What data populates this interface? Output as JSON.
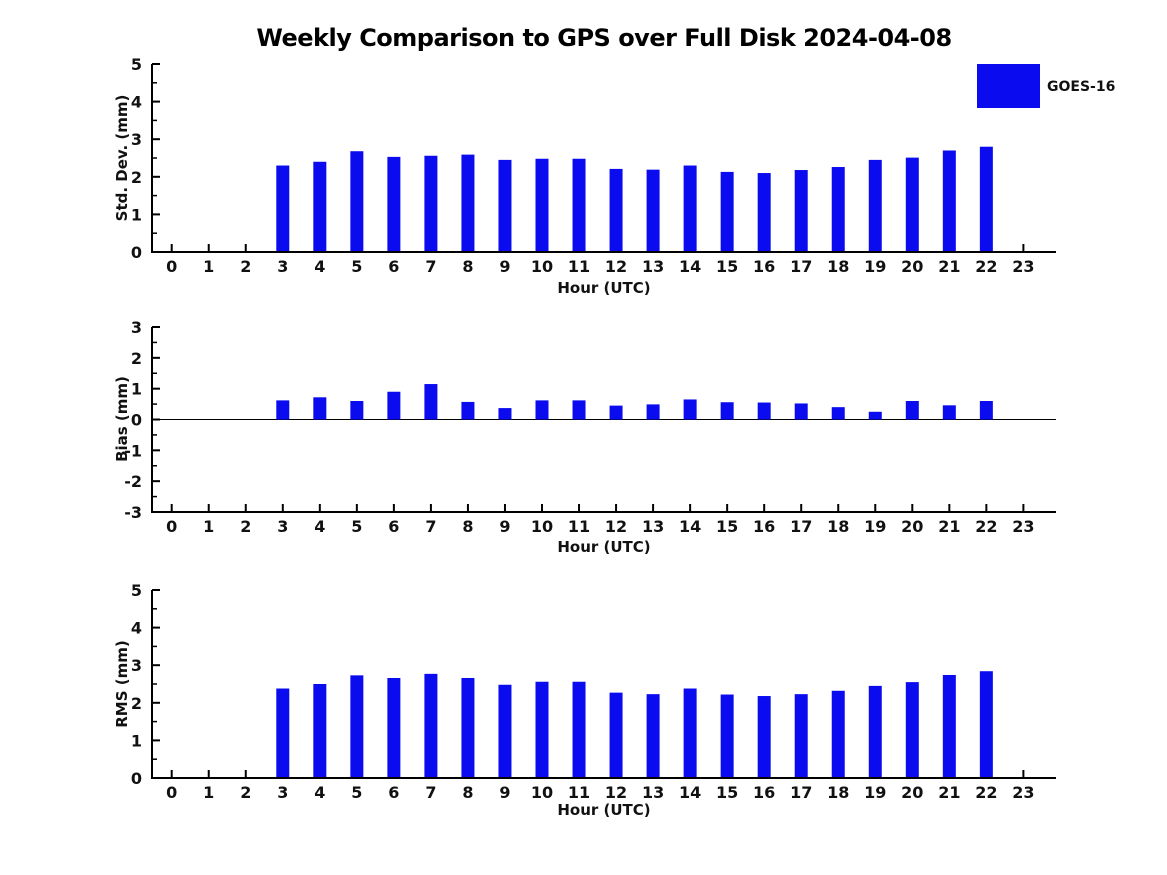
{
  "title": "Weekly Comparison to GPS over Full Disk 2024-04-08",
  "legend": {
    "label": "GOES-16",
    "color": "#0b0bf0",
    "position": "top-right"
  },
  "chart_data": [
    {
      "type": "bar",
      "ylabel": "Std. Dev. (mm)",
      "xlabel": "Hour (UTC)",
      "categories": [
        "0",
        "1",
        "2",
        "3",
        "4",
        "5",
        "6",
        "7",
        "8",
        "9",
        "10",
        "11",
        "12",
        "13",
        "14",
        "15",
        "16",
        "17",
        "18",
        "19",
        "20",
        "21",
        "22",
        "23"
      ],
      "series": [
        {
          "name": "GOES-16",
          "color": "#0b0bf0",
          "values": [
            null,
            null,
            null,
            2.3,
            2.4,
            2.68,
            2.53,
            2.56,
            2.59,
            2.45,
            2.48,
            2.48,
            2.21,
            2.19,
            2.3,
            2.13,
            2.1,
            2.18,
            2.26,
            2.45,
            2.51,
            2.7,
            2.8,
            null
          ]
        }
      ],
      "ylim": [
        0,
        5
      ],
      "yticks": [
        0,
        1,
        2,
        3,
        4,
        5
      ],
      "grid": false
    },
    {
      "type": "bar",
      "ylabel": "Bias (mm)",
      "xlabel": "Hour (UTC)",
      "categories": [
        "0",
        "1",
        "2",
        "3",
        "4",
        "5",
        "6",
        "7",
        "8",
        "9",
        "10",
        "11",
        "12",
        "13",
        "14",
        "15",
        "16",
        "17",
        "18",
        "19",
        "20",
        "21",
        "22",
        "23"
      ],
      "series": [
        {
          "name": "GOES-16",
          "color": "#0b0bf0",
          "values": [
            null,
            null,
            null,
            0.62,
            0.72,
            0.6,
            0.9,
            1.15,
            0.57,
            0.37,
            0.62,
            0.62,
            0.45,
            0.49,
            0.65,
            0.56,
            0.55,
            0.52,
            0.4,
            0.25,
            0.6,
            0.46,
            0.6,
            null
          ]
        }
      ],
      "ylim": [
        -3,
        3
      ],
      "yticks": [
        -3,
        -2,
        -1,
        0,
        1,
        2,
        3
      ],
      "grid": false
    },
    {
      "type": "bar",
      "ylabel": "RMS (mm)",
      "xlabel": "Hour (UTC)",
      "categories": [
        "0",
        "1",
        "2",
        "3",
        "4",
        "5",
        "6",
        "7",
        "8",
        "9",
        "10",
        "11",
        "12",
        "13",
        "14",
        "15",
        "16",
        "17",
        "18",
        "19",
        "20",
        "21",
        "22",
        "23"
      ],
      "series": [
        {
          "name": "GOES-16",
          "color": "#0b0bf0",
          "values": [
            null,
            null,
            null,
            2.38,
            2.5,
            2.73,
            2.66,
            2.77,
            2.66,
            2.48,
            2.56,
            2.56,
            2.27,
            2.23,
            2.38,
            2.22,
            2.18,
            2.23,
            2.32,
            2.45,
            2.55,
            2.74,
            2.84,
            null
          ]
        }
      ],
      "ylim": [
        0,
        5
      ],
      "yticks": [
        0,
        1,
        2,
        3,
        4,
        5
      ],
      "grid": false
    }
  ]
}
